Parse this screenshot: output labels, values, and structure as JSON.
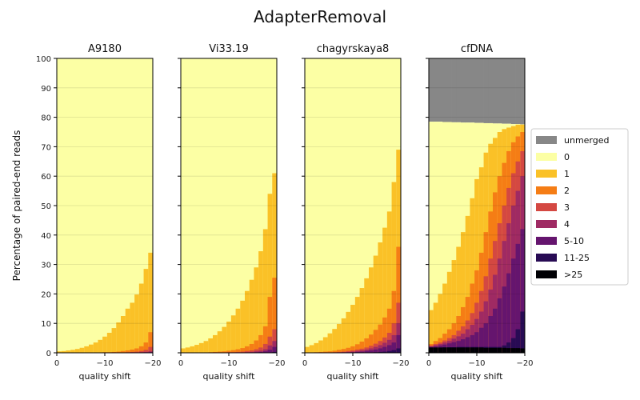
{
  "suptitle": "AdapterRemoval",
  "chart_data": {
    "type": "area",
    "suptitle": "AdapterRemoval",
    "ylabel": "Percentage of paired-end reads",
    "xlabel": "quality shift",
    "ylim": [
      0,
      100
    ],
    "xlim": [
      0,
      -20
    ],
    "x": [
      0,
      -1,
      -2,
      -3,
      -4,
      -5,
      -6,
      -7,
      -8,
      -9,
      -10,
      -11,
      -12,
      -13,
      -14,
      -15,
      -16,
      -17,
      -18,
      -19,
      -20
    ],
    "x_ticks": [
      0,
      -10,
      -20
    ],
    "x_tick_labels": [
      "0",
      "−10",
      "−20"
    ],
    "y_ticks": [
      0,
      10,
      20,
      30,
      40,
      50,
      60,
      70,
      80,
      90,
      100
    ],
    "grid": "horizontal",
    "legend_position": "right",
    "categories": [
      "unmerged",
      "0",
      "1",
      "2",
      "3",
      "4",
      "5-10",
      "11-25",
      ">25"
    ],
    "colors": {
      "unmerged": "#878787",
      "0": "#fcffa4",
      "1": "#fac127",
      "2": "#f57d15",
      "3": "#d44842",
      "4": "#9f2a63",
      "5-10": "#65156e",
      "11-25": "#280b54",
      ">25": "#000004"
    },
    "panels": [
      {
        "title": "A9180",
        "cumulative": {
          "1": [
            0.5,
            0.6,
            0.8,
            1.0,
            1.3,
            1.7,
            2.2,
            2.8,
            3.5,
            4.4,
            5.5,
            6.8,
            8.4,
            10.3,
            12.5,
            15.0,
            17.0,
            19.8,
            23.5,
            28.5,
            34.0
          ],
          "2": [
            0,
            0,
            0,
            0,
            0,
            0,
            0,
            0,
            0.1,
            0.1,
            0.2,
            0.2,
            0.3,
            0.4,
            0.6,
            0.8,
            1.1,
            1.5,
            2.2,
            3.5,
            7.0
          ],
          "3": [
            0,
            0,
            0,
            0,
            0,
            0,
            0,
            0,
            0,
            0,
            0,
            0,
            0,
            0.1,
            0.1,
            0.2,
            0.3,
            0.4,
            0.6,
            1.0,
            2.0
          ],
          "4": [
            0,
            0,
            0,
            0,
            0,
            0,
            0,
            0,
            0,
            0,
            0,
            0,
            0,
            0,
            0,
            0,
            0.1,
            0.1,
            0.2,
            0.3,
            0.5
          ],
          "5-10": [
            0,
            0,
            0,
            0,
            0,
            0,
            0,
            0,
            0,
            0,
            0,
            0,
            0,
            0,
            0,
            0,
            0,
            0,
            0.1,
            0.1,
            0.2
          ],
          "11-25": [
            0,
            0,
            0,
            0,
            0,
            0,
            0,
            0,
            0,
            0,
            0,
            0,
            0,
            0,
            0,
            0,
            0,
            0,
            0,
            0,
            0
          ],
          ">25": [
            0,
            0,
            0,
            0,
            0,
            0,
            0,
            0,
            0,
            0,
            0,
            0,
            0,
            0,
            0,
            0,
            0,
            0,
            0,
            0,
            0
          ],
          "merged_total": [
            100,
            100,
            100,
            100,
            100,
            100,
            100,
            100,
            100,
            100,
            100,
            100,
            100,
            100,
            100,
            100,
            100,
            100,
            100,
            100,
            100
          ]
        }
      },
      {
        "title": "Vi33.19",
        "cumulative": {
          "1": [
            1.5,
            1.8,
            2.2,
            2.7,
            3.3,
            4.0,
            4.9,
            6.0,
            7.3,
            8.8,
            10.6,
            12.7,
            15.0,
            17.7,
            21.0,
            24.8,
            29.0,
            34.5,
            42.0,
            54.0,
            61.0
          ],
          "2": [
            0,
            0,
            0,
            0,
            0.1,
            0.1,
            0.2,
            0.3,
            0.4,
            0.5,
            0.7,
            0.9,
            1.2,
            1.6,
            2.2,
            3.0,
            4.2,
            6.0,
            9.0,
            19.0,
            25.5
          ],
          "3": [
            0,
            0,
            0,
            0,
            0,
            0,
            0,
            0,
            0.1,
            0.1,
            0.2,
            0.2,
            0.3,
            0.4,
            0.6,
            0.8,
            1.2,
            1.8,
            3.0,
            5.5,
            8.0
          ],
          "4": [
            0,
            0,
            0,
            0,
            0,
            0,
            0,
            0,
            0,
            0,
            0,
            0,
            0.1,
            0.1,
            0.2,
            0.3,
            0.5,
            0.7,
            1.2,
            2.5,
            4.0
          ],
          "5-10": [
            0,
            0,
            0,
            0,
            0,
            0,
            0,
            0,
            0,
            0,
            0,
            0,
            0,
            0,
            0,
            0.1,
            0.2,
            0.3,
            0.5,
            1.0,
            2.0
          ],
          "11-25": [
            0,
            0,
            0,
            0,
            0,
            0,
            0,
            0,
            0,
            0,
            0,
            0,
            0,
            0,
            0,
            0,
            0,
            0,
            0,
            0.1,
            0.3
          ],
          ">25": [
            0,
            0,
            0,
            0,
            0,
            0,
            0,
            0,
            0,
            0,
            0,
            0,
            0,
            0,
            0,
            0,
            0,
            0,
            0,
            0,
            0
          ],
          "merged_total": [
            100,
            100,
            100,
            100,
            100,
            100,
            100,
            100,
            100,
            100,
            100,
            100,
            100,
            100,
            100,
            100,
            100,
            100,
            100,
            100,
            100
          ]
        }
      },
      {
        "title": "chagyrskaya8",
        "cumulative": {
          "1": [
            2.0,
            2.6,
            3.3,
            4.2,
            5.3,
            6.6,
            8.1,
            9.8,
            11.7,
            13.9,
            16.3,
            19.0,
            22.0,
            25.3,
            29.0,
            33.0,
            37.5,
            42.5,
            48.0,
            58.0,
            69.0
          ],
          "2": [
            0.1,
            0.1,
            0.2,
            0.3,
            0.4,
            0.5,
            0.7,
            1.0,
            1.3,
            1.7,
            2.2,
            2.9,
            3.8,
            4.9,
            6.2,
            7.8,
            9.6,
            12.0,
            15.0,
            21.0,
            36.0
          ],
          "3": [
            0,
            0,
            0,
            0,
            0.1,
            0.1,
            0.2,
            0.3,
            0.4,
            0.6,
            0.8,
            1.1,
            1.4,
            1.8,
            2.4,
            3.1,
            4.0,
            5.2,
            6.8,
            10.0,
            17.0
          ],
          "4": [
            0,
            0,
            0,
            0,
            0,
            0,
            0.1,
            0.1,
            0.2,
            0.3,
            0.4,
            0.6,
            0.8,
            1.1,
            1.5,
            2.0,
            2.6,
            3.4,
            4.4,
            6.0,
            10.0
          ],
          "5-10": [
            0,
            0,
            0,
            0,
            0,
            0,
            0,
            0,
            0.1,
            0.1,
            0.2,
            0.3,
            0.4,
            0.6,
            0.8,
            1.1,
            1.5,
            2.0,
            2.6,
            3.5,
            6.0
          ],
          "11-25": [
            0,
            0,
            0,
            0,
            0,
            0,
            0,
            0,
            0,
            0,
            0,
            0,
            0,
            0.1,
            0.1,
            0.2,
            0.3,
            0.4,
            0.6,
            0.9,
            1.5
          ],
          ">25": [
            0,
            0,
            0,
            0,
            0,
            0,
            0,
            0,
            0,
            0,
            0,
            0,
            0,
            0,
            0,
            0,
            0,
            0,
            0,
            0,
            0
          ],
          "merged_total": [
            100,
            100,
            100,
            100,
            100,
            100,
            100,
            100,
            100,
            100,
            100,
            100,
            100,
            100,
            100,
            100,
            100,
            100,
            100,
            100,
            100
          ]
        }
      },
      {
        "title": "cfDNA",
        "cumulative": {
          "1": [
            14.5,
            17.0,
            20.0,
            23.5,
            27.5,
            31.5,
            36.0,
            41.0,
            46.5,
            52.5,
            59.0,
            63.0,
            68.0,
            71.0,
            73.0,
            75.0,
            76.0,
            76.5,
            77.0,
            77.5,
            77.5
          ],
          "2": [
            3.0,
            4.0,
            5.0,
            6.5,
            8.0,
            10.0,
            12.5,
            15.5,
            19.0,
            23.5,
            28.0,
            34.0,
            41.0,
            48.0,
            54.5,
            60.0,
            64.5,
            68.5,
            71.5,
            73.5,
            75.0
          ],
          "3": [
            2.5,
            3.0,
            3.5,
            4.2,
            5.0,
            6.0,
            7.5,
            9.0,
            11.0,
            13.5,
            17.0,
            21.0,
            26.0,
            32.0,
            38.0,
            44.0,
            50.0,
            56.0,
            61.0,
            65.0,
            68.5
          ],
          "4": [
            2.2,
            2.6,
            3.0,
            3.5,
            4.0,
            4.8,
            5.6,
            6.5,
            8.0,
            9.5,
            11.5,
            14.0,
            17.5,
            21.5,
            26.5,
            32.0,
            38.0,
            44.0,
            50.0,
            55.0,
            60.0
          ],
          "5-10": [
            2.0,
            2.2,
            2.5,
            2.8,
            3.2,
            3.6,
            4.0,
            4.6,
            5.3,
            6.0,
            7.0,
            8.5,
            10.0,
            12.5,
            15.0,
            18.5,
            22.5,
            27.0,
            32.0,
            37.0,
            42.0
          ],
          "11-25": [
            1.8,
            1.8,
            1.8,
            1.9,
            1.9,
            1.9,
            2.0,
            2.0,
            2.0,
            2.0,
            2.0,
            2.0,
            2.0,
            2.0,
            2.0,
            2.0,
            2.5,
            3.5,
            5.0,
            8.0,
            14.0
          ],
          ">25": [
            1.8,
            1.8,
            1.8,
            1.8,
            1.8,
            1.8,
            1.8,
            1.8,
            1.8,
            1.8,
            1.8,
            1.8,
            1.7,
            1.7,
            1.7,
            1.7,
            1.7,
            1.6,
            1.6,
            1.6,
            1.5
          ],
          "merged_total": [
            78.5,
            78.5,
            78.5,
            78.4,
            78.4,
            78.3,
            78.3,
            78.2,
            78.2,
            78.2,
            78.1,
            78.1,
            78.0,
            78.0,
            77.9,
            77.9,
            77.8,
            77.8,
            77.7,
            77.7,
            77.6
          ]
        }
      }
    ]
  }
}
